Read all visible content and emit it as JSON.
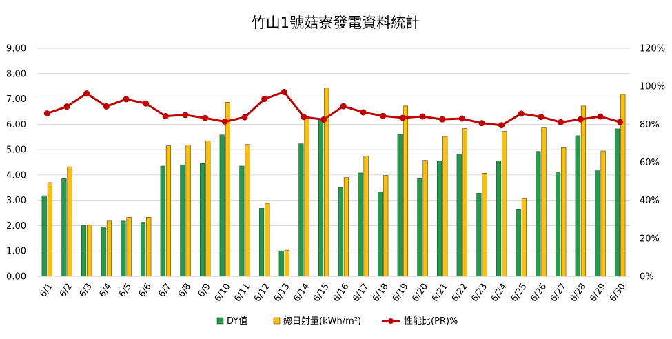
{
  "chart_data": {
    "type": "bar",
    "title": "竹山1號菇寮發電資料統計",
    "categories": [
      "6/1",
      "6/2",
      "6/3",
      "6/4",
      "6/5",
      "6/6",
      "6/7",
      "6/8",
      "6/9",
      "6/10",
      "6/11",
      "6/12",
      "6/13",
      "6/14",
      "6/15",
      "6/16",
      "6/17",
      "6/18",
      "6/19",
      "6/20",
      "6/21",
      "6/22",
      "6/23",
      "6/24",
      "6/25",
      "6/26",
      "6/27",
      "6/28",
      "6/29",
      "6/30"
    ],
    "series": [
      {
        "name": "DY值",
        "type": "bar",
        "axis": "left",
        "color": "#1e9e48",
        "values": [
          3.18,
          3.85,
          2.0,
          1.95,
          2.18,
          2.13,
          4.35,
          4.4,
          4.45,
          5.58,
          4.35,
          2.68,
          1.0,
          5.23,
          6.18,
          3.5,
          4.08,
          3.33,
          5.6,
          3.85,
          4.55,
          4.83,
          3.28,
          4.55,
          2.63,
          4.93,
          4.12,
          5.55,
          4.17,
          5.82
        ]
      },
      {
        "name": "總日射量(kWh/m²)",
        "type": "bar",
        "axis": "left",
        "color": "#ffc000",
        "values": [
          3.7,
          4.32,
          2.03,
          2.18,
          2.33,
          2.33,
          5.15,
          5.18,
          5.35,
          6.87,
          5.2,
          2.88,
          1.03,
          6.25,
          7.43,
          3.9,
          4.75,
          3.98,
          6.72,
          4.58,
          5.52,
          5.83,
          4.07,
          5.72,
          3.07,
          5.87,
          5.08,
          6.72,
          4.95,
          7.18
        ]
      },
      {
        "name": "性能比(PR)%",
        "type": "line",
        "axis": "right",
        "color": "#c00000",
        "values": [
          85.7,
          89.3,
          96.2,
          89.4,
          93.2,
          90.9,
          84.3,
          84.9,
          83.3,
          81.4,
          83.7,
          93.3,
          97.0,
          83.8,
          82.5,
          89.5,
          86.3,
          84.4,
          83.4,
          84.1,
          82.6,
          83.0,
          80.6,
          79.5,
          85.6,
          83.9,
          81.1,
          82.6,
          84.1,
          81.2
        ]
      }
    ],
    "y_left": {
      "min": 0,
      "max": 9,
      "step": 1,
      "tick_labels": [
        "0.00",
        "1.00",
        "2.00",
        "3.00",
        "4.00",
        "5.00",
        "6.00",
        "7.00",
        "8.00",
        "9.00"
      ]
    },
    "y_right": {
      "min": 0,
      "max": 120,
      "step": 20,
      "tick_labels": [
        "0%",
        "20%",
        "40%",
        "60%",
        "80%",
        "100%",
        "120%"
      ]
    },
    "grid": true,
    "legend_position": "bottom"
  }
}
